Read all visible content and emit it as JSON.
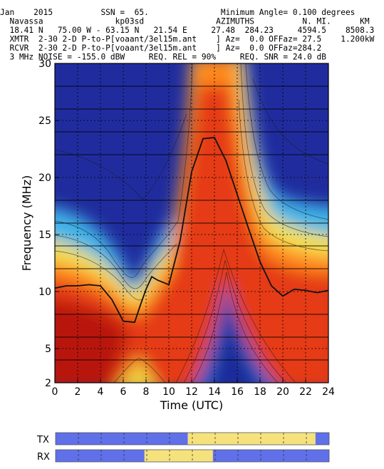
{
  "header": {
    "lines": [
      "Jan    2015          SSN =  65.               Minimum Angle= 0.100 degrees",
      "  Navassa               kp03sd               AZIMUTHS          N. MI.      KM",
      "  18.41 N   75.00 W - 63.15 N   21.54 E     27.48  284.23     4594.5    8508.3",
      "  XMTR  2-30 2-D P-to-P[voaant/3el15m.ant    ] Az=  0.0 OFFaz= 27.5    1.200kW",
      "  RCVR  2-30 2-D P-to-P[voaant/3el15m.ant    ] Az=  0.0 OFFaz=284.2",
      "  3 MHz NOISE = -155.0 dBW     REQ. REL = 90%     REQ. SNR = 24.0 dB"
    ]
  },
  "chart_data": {
    "type": "heatmap",
    "xlabel": "Time (UTC)",
    "ylabel": "Frequency (MHz)",
    "xlim": [
      0,
      24
    ],
    "ylim": [
      2,
      30
    ],
    "xticks": [
      0,
      2,
      4,
      6,
      8,
      10,
      12,
      14,
      16,
      18,
      20,
      22,
      24
    ],
    "yticks": [
      2,
      5,
      10,
      15,
      20,
      25,
      30
    ],
    "grid": true,
    "colors": {
      "low": "#2040b0",
      "high": "#c01810"
    },
    "muf_line": {
      "x": [
        0,
        1,
        2,
        3,
        4,
        5,
        6,
        7,
        7.5,
        8,
        8.5,
        9,
        10,
        11,
        12,
        13,
        14,
        15,
        16,
        17,
        18,
        19,
        20,
        21,
        22,
        23,
        24
      ],
      "y": [
        10.3,
        10.5,
        10.5,
        10.6,
        10.5,
        9.3,
        7.4,
        7.3,
        8.8,
        10.2,
        11.3,
        11.0,
        10.6,
        14.5,
        20.5,
        23.4,
        23.5,
        21.5,
        18.5,
        15.5,
        12.6,
        10.5,
        9.6,
        10.2,
        10.1,
        9.9,
        10.1
      ]
    }
  },
  "tx_bar": {
    "label": "TX",
    "segments": [
      {
        "from": 0,
        "to": 11.6,
        "color": "#6070e8"
      },
      {
        "from": 11.6,
        "to": 22.8,
        "color": "#f6e27c"
      },
      {
        "from": 22.8,
        "to": 24,
        "color": "#6070e8"
      }
    ]
  },
  "rx_bar": {
    "label": "RX",
    "segments": [
      {
        "from": 0,
        "to": 7.8,
        "color": "#6070e8"
      },
      {
        "from": 7.8,
        "to": 13.8,
        "color": "#f6e27c"
      },
      {
        "from": 13.8,
        "to": 24,
        "color": "#6070e8"
      }
    ]
  }
}
